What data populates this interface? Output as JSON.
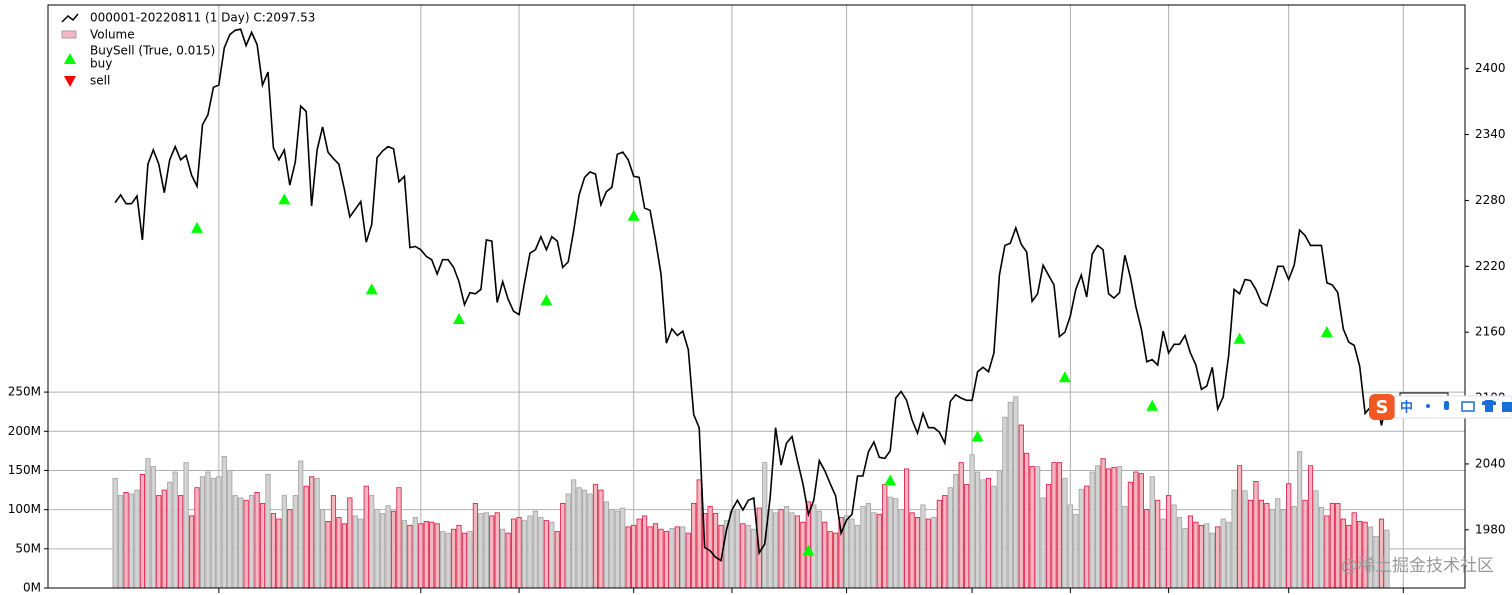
{
  "chart_data": {
    "type": "line",
    "legend": "upper left",
    "grid": true,
    "xlim": [
      -12.3,
      247.3
    ],
    "xticks": [
      19,
      56,
      74,
      95,
      113,
      134,
      157,
      175,
      193,
      215,
      236
    ],
    "ylim": [
      0,
      744
    ],
    "yticks": [
      {
        "value": 0,
        "label": "0M"
      },
      {
        "value": 50,
        "label": "50M"
      },
      {
        "value": 100,
        "label": "100M"
      },
      {
        "value": 150,
        "label": "150M"
      },
      {
        "value": 200,
        "label": "200M"
      },
      {
        "value": 250,
        "label": "250M"
      }
    ],
    "y2lim": [
      1927,
      2458
    ],
    "y2ticks": [
      1980,
      2040,
      2100,
      2160,
      2220,
      2280,
      2340,
      2400
    ],
    "series": [
      {
        "name": "000001-20220811 (1 Day) C:2097.53",
        "type": "line",
        "axis": "y2",
        "color": "#000000",
        "values": [
          2278,
          2285,
          2277,
          2277,
          2284,
          2244,
          2313,
          2326,
          2313,
          2287,
          2317,
          2329,
          2317,
          2321,
          2303,
          2293,
          2349,
          2358,
          2383,
          2385,
          2419,
          2431,
          2435,
          2436,
          2421,
          2433,
          2422,
          2385,
          2397,
          2328,
          2317,
          2326,
          2294,
          2315,
          2366,
          2361,
          2275,
          2326,
          2347,
          2324,
          2318,
          2313,
          2290,
          2265,
          2272,
          2279,
          2242,
          2258,
          2319,
          2325,
          2329,
          2327,
          2297,
          2302,
          2237,
          2238,
          2235,
          2229,
          2226,
          2213,
          2226,
          2226,
          2219,
          2206,
          2185,
          2196,
          2195,
          2199,
          2244,
          2243,
          2187,
          2206,
          2190,
          2179,
          2176,
          2205,
          2232,
          2235,
          2247,
          2235,
          2247,
          2243,
          2219,
          2224,
          2252,
          2285,
          2301,
          2306,
          2304,
          2276,
          2288,
          2292,
          2322,
          2324,
          2317,
          2302,
          2301,
          2273,
          2271,
          2244,
          2213,
          2150,
          2163,
          2157,
          2161,
          2144,
          2085,
          2073,
          1964,
          1961,
          1955,
          1952,
          1980,
          1998,
          2007,
          1998,
          2007,
          2009,
          1959,
          1967,
          2009,
          2073,
          2039,
          2059,
          2065,
          2043,
          2022,
          1994,
          2007,
          2043,
          2034,
          2022,
          2011,
          1977,
          1989,
          1994,
          2029,
          2029,
          2051,
          2060,
          2046,
          2045,
          2052,
          2100,
          2106,
          2098,
          2080,
          2068,
          2086,
          2073,
          2073,
          2069,
          2059,
          2097,
          2103,
          2100,
          2098,
          2098,
          2124,
          2128,
          2124,
          2141,
          2212,
          2239,
          2241,
          2255,
          2240,
          2233,
          2188,
          2195,
          2221,
          2212,
          2203,
          2156,
          2160,
          2175,
          2199,
          2212,
          2192,
          2231,
          2239,
          2235,
          2195,
          2191,
          2196,
          2230,
          2210,
          2183,
          2163,
          2133,
          2135,
          2130,
          2161,
          2141,
          2149,
          2149,
          2157,
          2141,
          2130,
          2108,
          2111,
          2128,
          2090,
          2101,
          2139,
          2199,
          2195,
          2208,
          2207,
          2199,
          2187,
          2184,
          2201,
          2220,
          2220,
          2208,
          2221,
          2253,
          2248,
          2239,
          2239,
          2239,
          2205,
          2203,
          2196,
          2163,
          2151,
          2148,
          2129,
          2086,
          2092,
          2100,
          2075,
          2097.53
        ]
      },
      {
        "name": "Volume",
        "type": "bar",
        "axis": "y",
        "color": "#d3d3d3",
        "down_color": "#f4b6c2",
        "edge_color": "#a0a0a0",
        "down_edge_color": "#dc143c",
        "values": [
          140,
          118,
          122,
          120,
          125,
          145,
          165,
          155,
          118,
          125,
          135,
          148,
          118,
          160,
          92,
          128,
          142,
          148,
          140,
          142,
          168,
          150,
          118,
          115,
          112,
          118,
          122,
          108,
          145,
          95,
          88,
          118,
          100,
          118,
          162,
          130,
          142,
          140,
          100,
          85,
          118,
          90,
          82,
          115,
          92,
          88,
          130,
          118,
          100,
          95,
          105,
          98,
          128,
          86,
          80,
          90,
          82,
          85,
          84,
          82,
          72,
          70,
          75,
          80,
          70,
          72,
          108,
          95,
          96,
          92,
          96,
          75,
          70,
          88,
          90,
          86,
          92,
          98,
          90,
          86,
          84,
          72,
          108,
          120,
          138,
          128,
          125,
          120,
          132,
          125,
          110,
          100,
          98,
          102,
          78,
          80,
          88,
          92,
          78,
          82,
          75,
          72,
          76,
          78,
          78,
          70,
          108,
          138,
          95,
          104,
          95,
          80,
          86,
          98,
          100,
          82,
          80,
          75,
          102,
          160,
          100,
          96,
          100,
          104,
          96,
          92,
          84,
          110,
          106,
          98,
          84,
          72,
          70,
          90,
          92,
          88,
          80,
          104,
          108,
          96,
          94,
          132,
          116,
          114,
          100,
          152,
          96,
          90,
          106,
          88,
          90,
          112,
          118,
          128,
          145,
          160,
          132,
          170,
          148,
          138,
          140,
          130,
          150,
          218,
          237,
          244,
          208,
          172,
          155,
          155,
          115,
          132,
          160,
          160,
          140,
          106,
          94,
          126,
          130,
          148,
          156,
          165,
          152,
          154,
          155,
          104,
          135,
          148,
          146,
          100,
          142,
          112,
          88,
          118,
          106,
          90,
          76,
          92,
          84,
          80,
          82,
          70,
          78,
          88,
          84,
          125,
          156,
          124,
          112,
          136,
          112,
          108,
          100,
          114,
          100,
          133,
          104,
          174,
          112,
          156,
          124,
          103,
          92,
          108,
          108,
          88,
          80,
          96,
          85,
          84,
          78,
          66,
          88,
          74
        ]
      }
    ],
    "buysell_label": "BuySell (True, 0.015)",
    "buy": {
      "name": "buy",
      "type": "scatter",
      "axis": "y2",
      "color": "#00ff00",
      "x": [
        15,
        31,
        47,
        63,
        79,
        95,
        127,
        142,
        158,
        174,
        190,
        206,
        222
      ],
      "values": [
        2255,
        2281,
        2199,
        2172,
        2189,
        2266,
        1961,
        2025,
        2065,
        2119,
        2093,
        2154,
        2160
      ]
    },
    "sell": {
      "name": "sell",
      "type": "scatter",
      "axis": "y2",
      "color": "#ff0000"
    }
  },
  "ime": {
    "label": "中"
  },
  "watermark": "@稀土掘金技术社区"
}
